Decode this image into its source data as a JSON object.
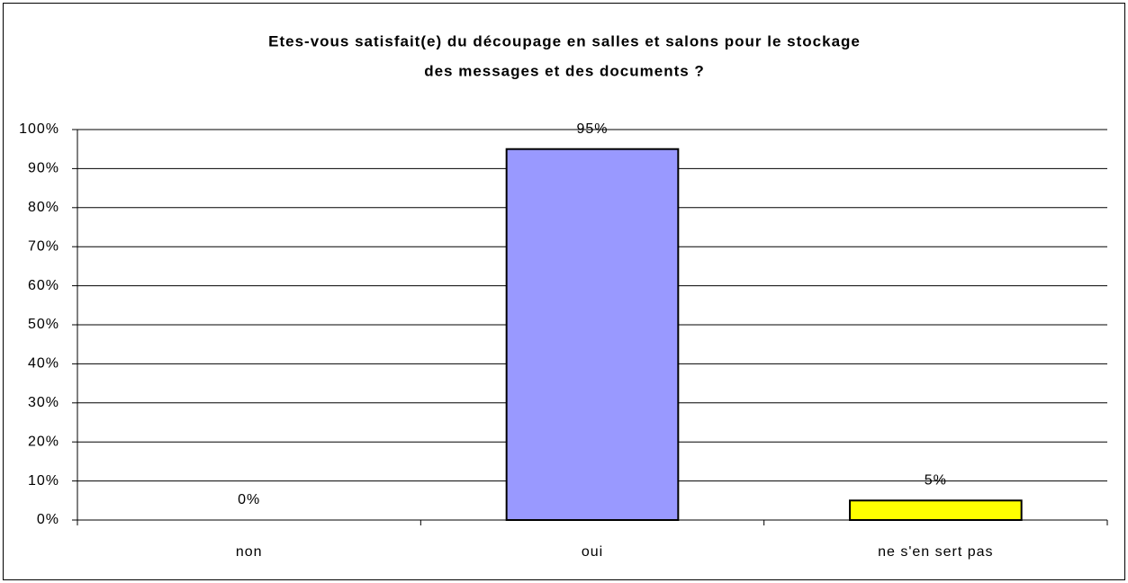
{
  "chart_data": {
    "type": "bar",
    "title": [
      "Etes-vous satisfait(e) du découpage en salles et salons pour le stockage",
      "des messages et des documents ?"
    ],
    "categories": [
      "non",
      "oui",
      "ne s'en sert pas"
    ],
    "values": [
      0,
      95,
      5
    ],
    "value_labels": [
      "0%",
      "95%",
      "5%"
    ],
    "colors": [
      "#9999ff",
      "#9999ff",
      "#ffff00"
    ],
    "ylim": [
      0,
      100
    ],
    "yticks": [
      {
        "value": 0,
        "label": "0%"
      },
      {
        "value": 10,
        "label": "10%"
      },
      {
        "value": 20,
        "label": "20%"
      },
      {
        "value": 30,
        "label": "30%"
      },
      {
        "value": 40,
        "label": "40%"
      },
      {
        "value": 50,
        "label": "50%"
      },
      {
        "value": 60,
        "label": "60%"
      },
      {
        "value": 70,
        "label": "70%"
      },
      {
        "value": 80,
        "label": "80%"
      },
      {
        "value": 90,
        "label": "90%"
      },
      {
        "value": 100,
        "label": "100%"
      }
    ],
    "grid": true
  }
}
